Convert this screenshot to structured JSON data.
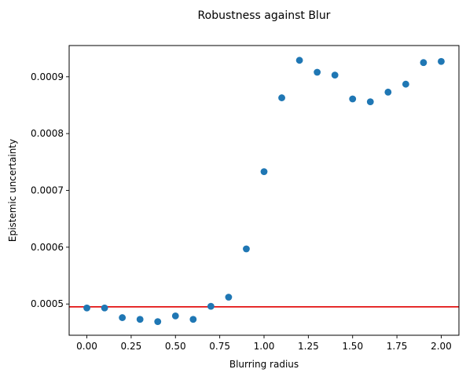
{
  "chart_data": {
    "type": "scatter",
    "title": "Robustness against Blur",
    "xlabel": "Blurring radius",
    "ylabel": "Epistemic uncertainty",
    "xlim": [
      -0.1,
      2.1
    ],
    "ylim": [
      0.000445,
      0.000955
    ],
    "xticks": [
      0.0,
      0.25,
      0.5,
      0.75,
      1.0,
      1.25,
      1.5,
      1.75,
      2.0
    ],
    "xtick_labels": [
      "0.00",
      "0.25",
      "0.50",
      "0.75",
      "1.00",
      "1.25",
      "1.50",
      "1.75",
      "2.00"
    ],
    "yticks": [
      0.0005,
      0.0006,
      0.0007,
      0.0008,
      0.0009
    ],
    "ytick_labels": [
      "0.0005",
      "0.0006",
      "0.0007",
      "0.0008",
      "0.0009"
    ],
    "grid": false,
    "marker_color": "#1f77b4",
    "reference_line": {
      "y": 0.000495,
      "color": "#e00000"
    },
    "x": [
      0.0,
      0.1,
      0.2,
      0.3,
      0.4,
      0.5,
      0.6,
      0.7,
      0.8,
      0.9,
      1.0,
      1.1,
      1.2,
      1.3,
      1.4,
      1.5,
      1.6,
      1.7,
      1.8,
      1.9,
      2.0
    ],
    "y": [
      0.000493,
      0.000493,
      0.000476,
      0.000473,
      0.000469,
      0.000479,
      0.000473,
      0.000496,
      0.000512,
      0.000597,
      0.000733,
      0.000863,
      0.000929,
      0.000908,
      0.000903,
      0.000861,
      0.000856,
      0.000873,
      0.000887,
      0.000925,
      0.000927
    ]
  }
}
